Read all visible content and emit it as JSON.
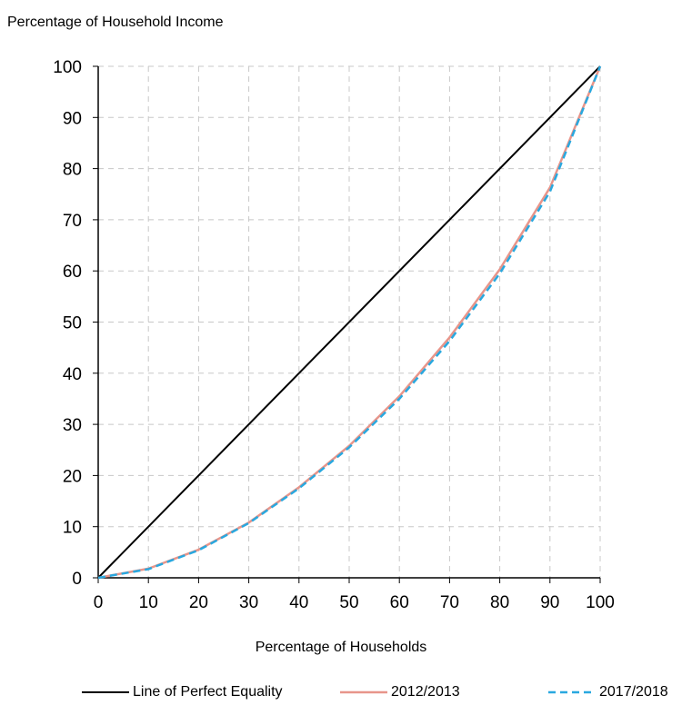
{
  "chart_data": {
    "type": "line",
    "title": "",
    "ylabel": "Percentage of Household Income",
    "xlabel": "Percentage of Households",
    "xlim": [
      0,
      100
    ],
    "ylim": [
      0,
      100
    ],
    "xticks": [
      0,
      10,
      20,
      30,
      40,
      50,
      60,
      70,
      80,
      90,
      100
    ],
    "yticks": [
      0,
      10,
      20,
      30,
      40,
      50,
      60,
      70,
      80,
      90,
      100
    ],
    "grid": true,
    "legend_position": "bottom",
    "series": [
      {
        "name": "Line of Perfect Equality",
        "color": "#000000",
        "style": "solid",
        "x": [
          0,
          100
        ],
        "y": [
          0,
          100
        ]
      },
      {
        "name": "2012/2013",
        "color": "#e8958a",
        "style": "solid",
        "x": [
          0,
          10,
          20,
          30,
          40,
          50,
          60,
          70,
          80,
          90,
          100
        ],
        "y": [
          0,
          1.8,
          5.5,
          10.8,
          17.7,
          25.8,
          35.5,
          47,
          60.3,
          76.3,
          100
        ]
      },
      {
        "name": "2017/2018",
        "color": "#29a8df",
        "style": "dashed",
        "x": [
          0,
          10,
          20,
          30,
          40,
          50,
          60,
          70,
          80,
          90,
          100
        ],
        "y": [
          0,
          1.7,
          5.4,
          10.7,
          17.5,
          25.5,
          35,
          46.3,
          59.5,
          75.5,
          100
        ]
      }
    ]
  }
}
